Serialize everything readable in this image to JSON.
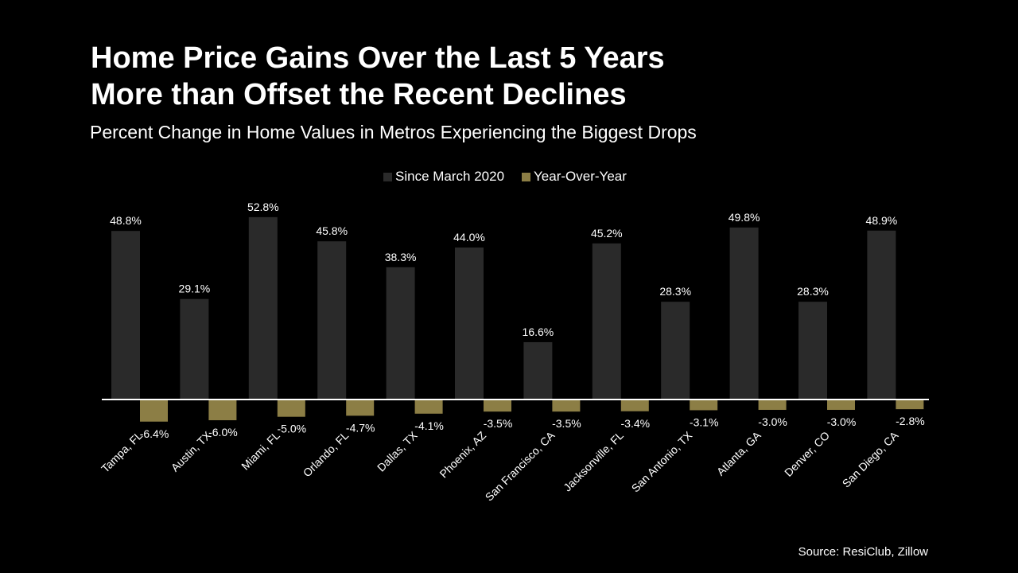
{
  "chart_data": {
    "type": "bar",
    "title": "Home Price Gains Over the Last 5 Years",
    "title_line2": "More than Offset the Recent Declines",
    "subtitle": "Percent Change in Home Values in Metros Experiencing the Biggest Drops",
    "legend_position": "top-center",
    "categories": [
      "Tampa, FL",
      "Austin, TX",
      "Miami, FL",
      "Orlando, FL",
      "Dallas, TX",
      "Phoenix, AZ",
      "San Francisco, CA",
      "Jacksonville, FL",
      "San Antonio, TX",
      "Atlanta, GA",
      "Denver, CO",
      "San Diego, CA"
    ],
    "series": [
      {
        "name": "Since March 2020",
        "color": "#2a2a2a",
        "values": [
          48.8,
          29.1,
          52.8,
          45.8,
          38.3,
          44.0,
          16.6,
          45.2,
          28.3,
          49.8,
          28.3,
          48.9
        ]
      },
      {
        "name": "Year-Over-Year",
        "color": "#8c7e45",
        "values": [
          -6.4,
          -6.0,
          -5.0,
          -4.7,
          -4.1,
          -3.5,
          -3.5,
          -3.4,
          -3.1,
          -3.0,
          -3.0,
          -2.8
        ]
      }
    ],
    "xlabel": "",
    "ylabel": "",
    "ylim": [
      -8,
      55
    ],
    "grid": false,
    "source": "Source: ResiClub, Zillow"
  }
}
